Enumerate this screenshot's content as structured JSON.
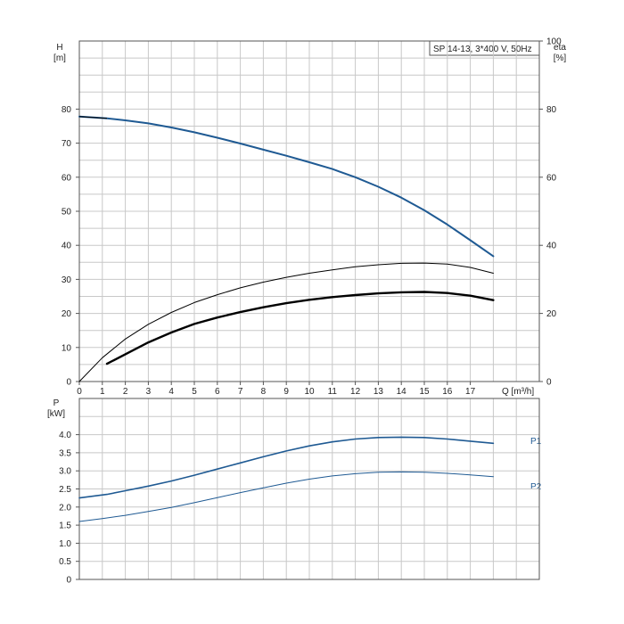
{
  "colors": {
    "grid": "#c8c8c8",
    "frame": "#555555",
    "blue": "#1f5a93",
    "black": "#000000",
    "text": "#222222"
  },
  "chart_data": [
    {
      "type": "line",
      "title": "SP 14-13, 3*400 V, 50Hz",
      "xlabel": "Q [m³/h]",
      "ylabel_left": [
        "H",
        "[m]"
      ],
      "ylabel_right": [
        "eta",
        "[%]"
      ],
      "xlim": [
        0,
        20
      ],
      "ylim": [
        0,
        100
      ],
      "ylim_right": [
        0,
        100
      ],
      "grid": true,
      "x_ticks": [
        0,
        1,
        2,
        3,
        4,
        5,
        6,
        7,
        8,
        9,
        10,
        11,
        12,
        13,
        14,
        15,
        16,
        17
      ],
      "y_ticks": [
        0,
        10,
        20,
        30,
        40,
        50,
        60,
        70,
        80
      ],
      "y_ticks_right": [
        0,
        20,
        40,
        60,
        80,
        100
      ],
      "series": [
        {
          "color": "#1f5a93",
          "width": 2,
          "x": [
            0,
            1.2,
            2,
            3,
            4,
            5,
            6,
            7,
            8,
            9,
            10,
            11,
            12,
            13,
            14,
            15,
            16,
            17,
            18
          ],
          "y": [
            77.8,
            77.3,
            76.7,
            75.8,
            74.6,
            73.2,
            71.6,
            69.9,
            68.1,
            66.3,
            64.4,
            62.4,
            60.0,
            57.2,
            54.0,
            50.3,
            46.1,
            41.5,
            36.8
          ]
        },
        {
          "color": "#000000",
          "width": 1,
          "x": [
            0,
            1,
            2,
            3,
            4,
            5,
            6,
            7,
            8,
            9,
            10,
            11,
            12,
            13,
            14,
            15,
            16,
            17,
            18
          ],
          "y": [
            0,
            7.0,
            12.5,
            16.8,
            20.3,
            23.2,
            25.5,
            27.5,
            29.2,
            30.6,
            31.8,
            32.8,
            33.7,
            34.3,
            34.7,
            34.8,
            34.5,
            33.5,
            31.8
          ]
        },
        {
          "color": "#000000",
          "width": 2.4,
          "x": [
            1.2,
            2,
            3,
            4,
            5,
            6,
            7,
            8,
            9,
            10,
            11,
            12,
            13,
            14,
            15,
            16,
            17,
            18
          ],
          "y": [
            5.2,
            8.0,
            11.5,
            14.4,
            16.9,
            18.8,
            20.4,
            21.8,
            23.0,
            24.0,
            24.8,
            25.4,
            25.9,
            26.2,
            26.3,
            26.0,
            25.2,
            23.9
          ]
        }
      ]
    },
    {
      "type": "line",
      "ylabel_left": [
        "P",
        "[kW]"
      ],
      "xlim": [
        0,
        20
      ],
      "ylim": [
        0,
        5
      ],
      "grid": true,
      "y_ticks": [
        0,
        0.5,
        1.0,
        1.5,
        2.0,
        2.5,
        3.0,
        3.5,
        4.0
      ],
      "y_tick_labels": [
        "0",
        "0.5",
        "1.0",
        "1.5",
        "2.0",
        "2.5",
        "3.0",
        "3.5",
        "4.0"
      ],
      "series": [
        {
          "name": "P1",
          "color": "#1f5a93",
          "width": 1.6,
          "x": [
            0,
            1.2,
            2,
            3,
            4,
            5,
            6,
            7,
            8,
            9,
            10,
            11,
            12,
            13,
            14,
            15,
            16,
            17,
            18
          ],
          "y": [
            2.25,
            2.35,
            2.45,
            2.58,
            2.72,
            2.88,
            3.05,
            3.22,
            3.39,
            3.55,
            3.69,
            3.8,
            3.88,
            3.92,
            3.93,
            3.92,
            3.88,
            3.82,
            3.76
          ]
        },
        {
          "name": "P2",
          "color": "#1f5a93",
          "width": 1,
          "x": [
            0,
            1,
            2,
            3,
            4,
            5,
            6,
            7,
            8,
            9,
            10,
            11,
            12,
            13,
            14,
            15,
            16,
            17,
            18
          ],
          "y": [
            1.6,
            1.68,
            1.77,
            1.88,
            1.99,
            2.12,
            2.26,
            2.4,
            2.53,
            2.66,
            2.77,
            2.86,
            2.92,
            2.96,
            2.97,
            2.96,
            2.93,
            2.89,
            2.84
          ]
        }
      ]
    }
  ]
}
